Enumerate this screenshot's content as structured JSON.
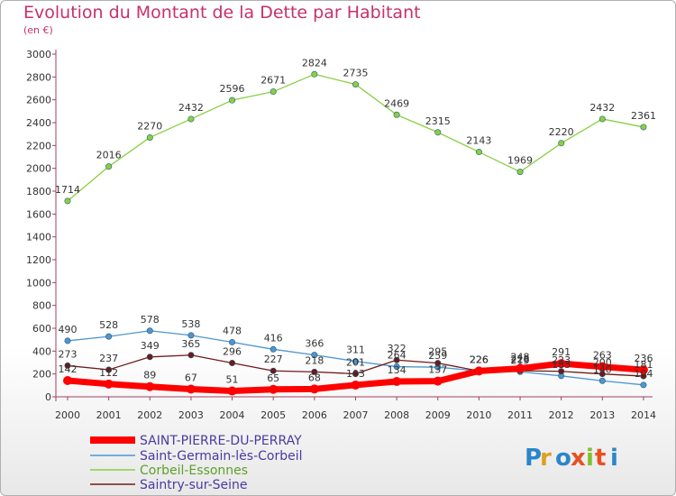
{
  "chart_data": {
    "type": "line",
    "title": "Evolution du Montant de la Dette par Habitant",
    "subtitle": "(en €)",
    "x": [
      "2000",
      "2001",
      "2002",
      "2003",
      "2004",
      "2005",
      "2006",
      "2007",
      "2008",
      "2009",
      "2010",
      "2011",
      "2012",
      "2013",
      "2014"
    ],
    "ylim": [
      0,
      3000
    ],
    "yticks": [
      0,
      200,
      400,
      600,
      800,
      1000,
      1200,
      1400,
      1600,
      1800,
      2000,
      2200,
      2400,
      2600,
      2800,
      3000
    ],
    "grid": false,
    "legend_position": "bottom-left",
    "series": [
      {
        "name": "Corbeil-Essonnes",
        "color": "#88d044",
        "values": [
          1714,
          2016,
          2270,
          2432,
          2596,
          2671,
          2824,
          2735,
          2469,
          2315,
          2143,
          1969,
          2220,
          2432,
          2361
        ]
      },
      {
        "name": "Saint-Germain-lès-Corbeil",
        "color": "#4e96cf",
        "values": [
          490,
          528,
          578,
          538,
          478,
          416,
          366,
          311,
          264,
          259,
          226,
          219,
          183,
          140,
          104
        ]
      },
      {
        "name": "Saintry-sur-Seine",
        "color": "#6e1a1a",
        "values": [
          273,
          237,
          349,
          365,
          296,
          227,
          218,
          201,
          322,
          295,
          226,
          228,
          223,
          200,
          181
        ]
      },
      {
        "name": "SAINT-PIERRE-DU-PERRAY",
        "color": "#ff0000",
        "values": [
          142,
          112,
          89,
          67,
          51,
          65,
          68,
          103,
          134,
          137,
          226,
          248,
          291,
          263,
          236
        ]
      }
    ],
    "legend": [
      "SAINT-PIERRE-DU-PERRAY",
      "Saint-Germain-lès-Corbeil",
      "Corbeil-Essonnes",
      "Saintry-sur-Seine"
    ],
    "logo": "Proxiti"
  }
}
